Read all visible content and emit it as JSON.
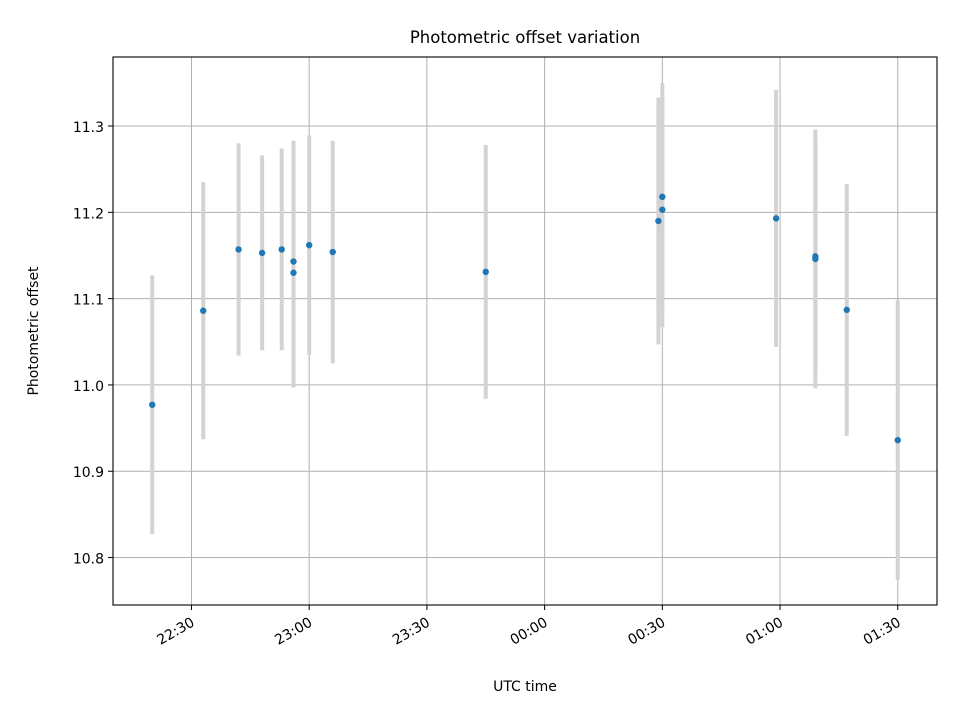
{
  "chart_data": {
    "type": "scatter",
    "title": "Photometric offset variation",
    "xlabel": "UTC time",
    "ylabel": "Photometric offset",
    "grid": true,
    "xlim": [
      "22:10",
      "01:40"
    ],
    "ylim": [
      10.745,
      11.38
    ],
    "x_ticks": [
      "22:30",
      "23:00",
      "23:30",
      "00:00",
      "00:30",
      "01:00",
      "01:30"
    ],
    "y_ticks": [
      "10.8",
      "10.9",
      "11.0",
      "11.1",
      "11.2",
      "11.3"
    ],
    "colors": {
      "point": "#1f77b4",
      "errorbar": "#d3d3d3",
      "grid": "#b0b0b0"
    },
    "series": [
      {
        "points": [
          {
            "t": "22:20",
            "y": 10.977,
            "err": 0.15
          },
          {
            "t": "22:33",
            "y": 11.086,
            "err": 0.149
          },
          {
            "t": "22:42",
            "y": 11.157,
            "err": 0.123
          },
          {
            "t": "22:48",
            "y": 11.153,
            "err": 0.113
          },
          {
            "t": "22:53",
            "y": 11.157,
            "err": 0.117
          },
          {
            "t": "22:56",
            "y": 11.13,
            "err": 0.133
          },
          {
            "t": "22:56",
            "y": 11.143,
            "err": 0.14
          },
          {
            "t": "23:00",
            "y": 11.162,
            "err": 0.127
          },
          {
            "t": "23:06",
            "y": 11.154,
            "err": 0.129
          },
          {
            "t": "23:45",
            "y": 11.131,
            "err": 0.147
          },
          {
            "t": "00:29",
            "y": 11.19,
            "err": 0.143
          },
          {
            "t": "00:30",
            "y": 11.218,
            "err": 0.132
          },
          {
            "t": "00:30",
            "y": 11.203,
            "err": 0.136
          },
          {
            "t": "00:59",
            "y": 11.193,
            "err": 0.149
          },
          {
            "t": "01:09",
            "y": 11.146,
            "err": 0.15
          },
          {
            "t": "01:09",
            "y": 11.149,
            "err": 0.137
          },
          {
            "t": "01:17",
            "y": 11.087,
            "err": 0.146
          },
          {
            "t": "01:30",
            "y": 10.936,
            "err": 0.162
          }
        ]
      }
    ]
  }
}
